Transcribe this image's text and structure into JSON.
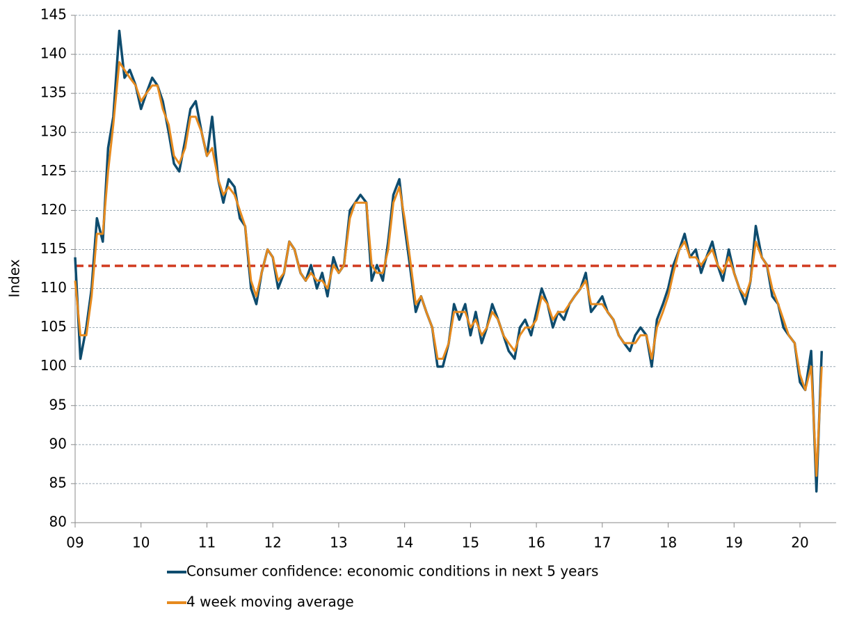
{
  "chart_data": {
    "type": "line",
    "y_label": "Index",
    "xlim": [
      2009,
      2020.55
    ],
    "ylim": [
      80,
      145
    ],
    "yticks": [
      80,
      85,
      90,
      95,
      100,
      105,
      110,
      115,
      120,
      125,
      130,
      135,
      140,
      145
    ],
    "xticks": [
      {
        "value": 2009,
        "label": "09"
      },
      {
        "value": 2010,
        "label": "10"
      },
      {
        "value": 2011,
        "label": "11"
      },
      {
        "value": 2012,
        "label": "12"
      },
      {
        "value": 2013,
        "label": "13"
      },
      {
        "value": 2014,
        "label": "14"
      },
      {
        "value": 2015,
        "label": "15"
      },
      {
        "value": 2016,
        "label": "16"
      },
      {
        "value": 2017,
        "label": "17"
      },
      {
        "value": 2018,
        "label": "18"
      },
      {
        "value": 2019,
        "label": "19"
      },
      {
        "value": 2020,
        "label": "20"
      }
    ],
    "grid": true,
    "reference_line": 112.9,
    "reference_color": "#d03a1f",
    "x": [
      2009.0,
      2009.08,
      2009.17,
      2009.25,
      2009.33,
      2009.42,
      2009.5,
      2009.58,
      2009.67,
      2009.75,
      2009.83,
      2009.92,
      2010.0,
      2010.08,
      2010.17,
      2010.25,
      2010.33,
      2010.42,
      2010.5,
      2010.58,
      2010.67,
      2010.75,
      2010.83,
      2010.92,
      2011.0,
      2011.08,
      2011.17,
      2011.25,
      2011.33,
      2011.42,
      2011.5,
      2011.58,
      2011.67,
      2011.75,
      2011.83,
      2011.92,
      2012.0,
      2012.08,
      2012.17,
      2012.25,
      2012.33,
      2012.42,
      2012.5,
      2012.58,
      2012.67,
      2012.75,
      2012.83,
      2012.92,
      2013.0,
      2013.08,
      2013.17,
      2013.25,
      2013.33,
      2013.42,
      2013.5,
      2013.58,
      2013.67,
      2013.75,
      2013.83,
      2013.92,
      2014.0,
      2014.08,
      2014.17,
      2014.25,
      2014.33,
      2014.42,
      2014.5,
      2014.58,
      2014.67,
      2014.75,
      2014.83,
      2014.92,
      2015.0,
      2015.08,
      2015.17,
      2015.25,
      2015.33,
      2015.42,
      2015.5,
      2015.58,
      2015.67,
      2015.75,
      2015.83,
      2015.92,
      2016.0,
      2016.08,
      2016.17,
      2016.25,
      2016.33,
      2016.42,
      2016.5,
      2016.58,
      2016.67,
      2016.75,
      2016.83,
      2016.92,
      2017.0,
      2017.08,
      2017.17,
      2017.25,
      2017.33,
      2017.42,
      2017.5,
      2017.58,
      2017.67,
      2017.75,
      2017.83,
      2017.92,
      2018.0,
      2018.08,
      2018.17,
      2018.25,
      2018.33,
      2018.42,
      2018.5,
      2018.58,
      2018.67,
      2018.75,
      2018.83,
      2018.92,
      2019.0,
      2019.08,
      2019.17,
      2019.25,
      2019.33,
      2019.42,
      2019.5,
      2019.58,
      2019.67,
      2019.75,
      2019.83,
      2019.92,
      2020.0,
      2020.08,
      2020.17,
      2020.25,
      2020.33
    ],
    "series": [
      {
        "name": "Consumer confidence: economic conditions in next 5 years",
        "color": "#0e4c6e",
        "values": [
          114,
          101,
          105,
          110,
          119,
          116,
          128,
          132,
          143,
          137,
          138,
          136,
          133,
          135,
          137,
          136,
          134,
          130,
          126,
          125,
          129,
          133,
          134,
          130,
          127,
          132,
          124,
          121,
          124,
          123,
          119,
          118,
          110,
          108,
          112,
          115,
          114,
          110,
          112,
          116,
          115,
          112,
          111,
          113,
          110,
          112,
          109,
          114,
          112,
          113,
          120,
          121,
          122,
          121,
          111,
          113,
          111,
          116,
          122,
          124,
          118,
          113,
          107,
          109,
          107,
          105,
          100,
          100,
          103,
          108,
          106,
          108,
          104,
          107,
          103,
          105,
          108,
          106,
          104,
          102,
          101,
          105,
          106,
          104,
          107,
          110,
          108,
          105,
          107,
          106,
          108,
          109,
          110,
          112,
          107,
          108,
          109,
          107,
          106,
          104,
          103,
          102,
          104,
          105,
          104,
          100,
          106,
          108,
          110,
          113,
          115,
          117,
          114,
          115,
          112,
          114,
          116,
          113,
          111,
          115,
          112,
          110,
          108,
          111,
          118,
          114,
          113,
          109,
          108,
          105,
          104,
          103,
          98,
          97,
          102,
          84,
          102
        ]
      },
      {
        "name": "4 week moving average",
        "color": "#e68a1e",
        "values": [
          111,
          104,
          104,
          109,
          117,
          117,
          125,
          131,
          139,
          138,
          137,
          136,
          134,
          135,
          136,
          136,
          133,
          131,
          127,
          126,
          128,
          132,
          132,
          130,
          127,
          128,
          124,
          122,
          123,
          122,
          120,
          118,
          111,
          109,
          112,
          115,
          114,
          111,
          112,
          116,
          115,
          112,
          111,
          112,
          111,
          111,
          110,
          113,
          112,
          113,
          119,
          121,
          121,
          121,
          113,
          112,
          112,
          115,
          121,
          123,
          119,
          114,
          108,
          109,
          107,
          105,
          101,
          101,
          103,
          107,
          107,
          107,
          105,
          106,
          104,
          105,
          107,
          106,
          104,
          103,
          102,
          104,
          105,
          105,
          106,
          109,
          108,
          106,
          107,
          107,
          108,
          109,
          110,
          111,
          108,
          108,
          108,
          107,
          106,
          104,
          103,
          103,
          103,
          104,
          104,
          101,
          105,
          107,
          109,
          112,
          115,
          116,
          114,
          114,
          113,
          114,
          115,
          113,
          112,
          114,
          112,
          110,
          109,
          111,
          116,
          114,
          113,
          110,
          108,
          106,
          104,
          103,
          99,
          97,
          100,
          86,
          100
        ]
      }
    ]
  }
}
